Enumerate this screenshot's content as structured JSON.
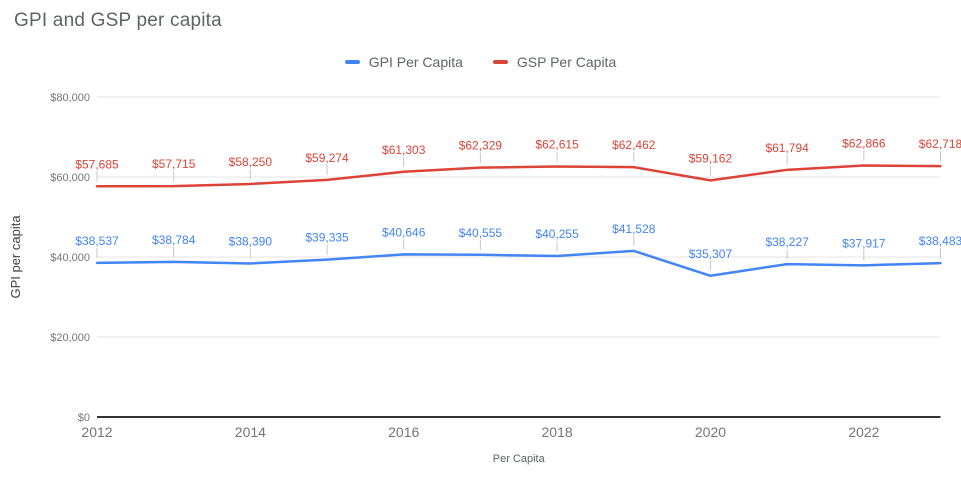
{
  "chart": {
    "title": "GPI and GSP per capita",
    "y_axis_title": "GPI per capita",
    "x_axis_title": "Per Capita",
    "y_ticks": [
      {
        "label": "$80,000",
        "value": 80000
      },
      {
        "label": "$60,000",
        "value": 60000
      },
      {
        "label": "$40,000",
        "value": 40000
      },
      {
        "label": "$20,000",
        "value": 20000
      },
      {
        "label": "$0",
        "value": 0
      }
    ],
    "x_ticks": [
      {
        "label": "2012",
        "value": 2012
      },
      {
        "label": "2014",
        "value": 2014
      },
      {
        "label": "2016",
        "value": 2016
      },
      {
        "label": "2018",
        "value": 2018
      },
      {
        "label": "2020",
        "value": 2020
      },
      {
        "label": "2022",
        "value": 2022
      }
    ]
  },
  "legend": [
    {
      "label": "GPI Per Capita",
      "color": "#4285F4"
    },
    {
      "label": "GSP Per Capita",
      "color": "#DB4437"
    }
  ],
  "colors": {
    "gpi_series": "#4285F4",
    "gsp_series": "#DB4437",
    "gridline": "#e6e6e6",
    "baseline": "#333333",
    "label_stem": "#c7c7c7"
  },
  "chart_data": {
    "type": "line",
    "title": "GPI and GSP per capita",
    "xlabel": "Per Capita",
    "ylabel": "GPI per capita",
    "x": [
      2012,
      2013,
      2014,
      2015,
      2016,
      2017,
      2018,
      2019,
      2020,
      2021,
      2022,
      2023
    ],
    "series": [
      {
        "name": "GPI Per Capita",
        "color": "#4285F4",
        "values": [
          38537,
          38784,
          38390,
          39335,
          40646,
          40555,
          40255,
          41528,
          35307,
          38227,
          37917,
          38483
        ],
        "labels": [
          "$38,537",
          "$38,784",
          "$38,390",
          "$39,335",
          "$40,646",
          "$40,555",
          "$40,255",
          "$41,528",
          "$35,307",
          "$38,227",
          "$37,917",
          "$38,483"
        ]
      },
      {
        "name": "GSP Per Capita",
        "color": "#DB4437",
        "values": [
          57685,
          57715,
          58250,
          59274,
          61303,
          62329,
          62615,
          62462,
          59162,
          61794,
          62866,
          62718
        ],
        "labels": [
          "$57,685",
          "$57,715",
          "$58,250",
          "$59,274",
          "$61,303",
          "$62,329",
          "$62,615",
          "$62,462",
          "$59,162",
          "$61,794",
          "$62,866",
          "$62,718"
        ]
      }
    ],
    "ylim": [
      0,
      80000
    ],
    "grid": true,
    "legend_position": "top",
    "data_labels": true
  }
}
